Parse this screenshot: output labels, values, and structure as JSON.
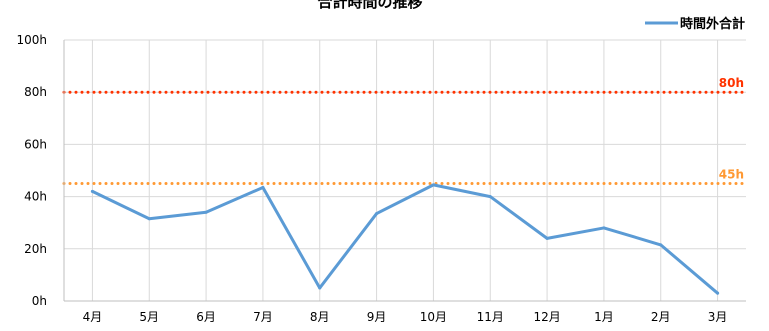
{
  "chart_data": {
    "type": "line",
    "title": "合計時間の推移",
    "categories": [
      "4月",
      "5月",
      "6月",
      "7月",
      "8月",
      "9月",
      "10月",
      "11月",
      "12月",
      "1月",
      "2月",
      "3月"
    ],
    "series": [
      {
        "name": "時間外合計",
        "color": "#5B9BD5",
        "values": [
          42,
          31.5,
          34,
          43.5,
          5,
          33.5,
          44.5,
          40,
          24,
          28,
          21.5,
          3
        ]
      }
    ],
    "ylim": [
      0,
      100
    ],
    "yticks": [
      0,
      20,
      40,
      60,
      80,
      100
    ],
    "ytick_labels": [
      "0h",
      "20h",
      "40h",
      "60h",
      "80h",
      "100h"
    ],
    "reference_lines": [
      {
        "label": "80h",
        "value": 80,
        "color": "#FF3300",
        "style": "dotted"
      },
      {
        "label": "45h",
        "value": 45,
        "color": "#FF9933",
        "style": "dotted"
      }
    ],
    "grid": true,
    "legend_position": "top-right"
  }
}
